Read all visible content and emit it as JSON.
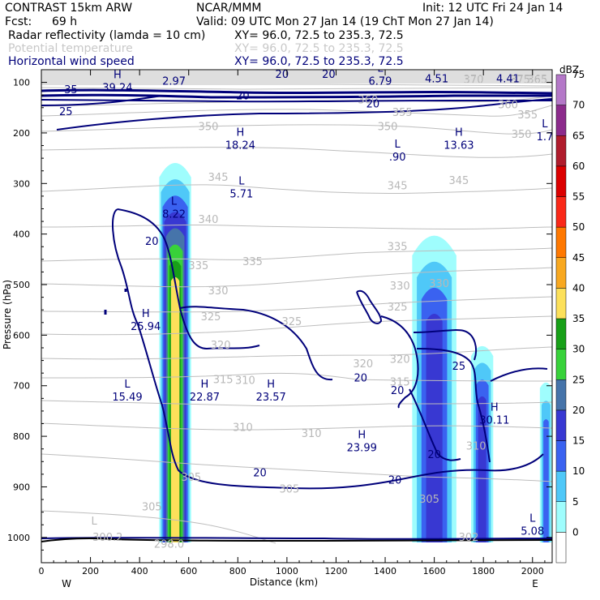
{
  "header": {
    "line1_left": "CONTRAST 15km ARW",
    "line1_mid": "NCAR/MMM",
    "line1_right": "Init: 12 UTC Fri 24 Jan 14",
    "fcst_label": "Fcst:",
    "fcst_value": "69 h",
    "valid": "Valid: 09 UTC Mon 27 Jan 14 (19 ChT Mon 27 Jan 14)",
    "fields": [
      {
        "name": "Radar reflectivity (lamda = 10 cm)",
        "xy": "XY=   96.0, 72.5 to 235.3, 72.5",
        "color": "#000000"
      },
      {
        "name": "Potential temperature",
        "xy": "XY=   96.0, 72.5 to 235.3, 72.5",
        "color": "#c8c8c8"
      },
      {
        "name": "Horizontal wind speed",
        "xy": "XY=   96.0, 72.5 to 235.3, 72.5",
        "color": "#00007a"
      }
    ]
  },
  "chart_data": {
    "type": "cross-section",
    "xlabel": "Distance (km)",
    "ylabel": "Pressure (hPa)",
    "xlim": [
      0,
      2080
    ],
    "ylim": [
      1050,
      75
    ],
    "x_ticks": [
      0,
      200,
      400,
      600,
      800,
      1000,
      1200,
      1400,
      1600,
      1800,
      2000
    ],
    "y_ticks": [
      100,
      200,
      300,
      400,
      500,
      600,
      700,
      800,
      900,
      1000
    ],
    "x_end_labels": {
      "left": "W",
      "right": "E"
    },
    "colorbar": {
      "unit": "dBZ",
      "levels": [
        0,
        5,
        10,
        15,
        20,
        25,
        30,
        35,
        40,
        45,
        50,
        55,
        60,
        65,
        70,
        75
      ],
      "colors": [
        "#ffffff",
        "#9ffdfd",
        "#4fc8f8",
        "#3a62f0",
        "#3838d2",
        "#4674aa",
        "#38d23a",
        "#18a018",
        "#fce05a",
        "#f8a820",
        "#ff7800",
        "#fa2818",
        "#dc0000",
        "#b01c2c",
        "#8c2b8c",
        "#b478c8"
      ]
    },
    "theta_contours": [
      {
        "value": "375",
        "x": 1950,
        "p": 95
      },
      {
        "value": "370",
        "x": 1760,
        "p": 95
      },
      {
        "value": "365",
        "x": 2020,
        "p": 95
      },
      {
        "value": "360",
        "x": 1330,
        "p": 135
      },
      {
        "value": "360",
        "x": 1900,
        "p": 145
      },
      {
        "value": "355",
        "x": 1470,
        "p": 160
      },
      {
        "value": "355",
        "x": 1980,
        "p": 165
      },
      {
        "value": "350",
        "x": 680,
        "p": 188
      },
      {
        "value": "350",
        "x": 1410,
        "p": 188
      },
      {
        "value": "350",
        "x": 1955,
        "p": 203
      },
      {
        "value": "345",
        "x": 720,
        "p": 288
      },
      {
        "value": "345",
        "x": 1450,
        "p": 305
      },
      {
        "value": "345",
        "x": 1700,
        "p": 295
      },
      {
        "value": "340",
        "x": 680,
        "p": 372
      },
      {
        "value": "335",
        "x": 640,
        "p": 463
      },
      {
        "value": "335",
        "x": 860,
        "p": 455
      },
      {
        "value": "335",
        "x": 1450,
        "p": 425
      },
      {
        "value": "330",
        "x": 720,
        "p": 513
      },
      {
        "value": "330",
        "x": 1460,
        "p": 503
      },
      {
        "value": "330",
        "x": 1620,
        "p": 498
      },
      {
        "value": "325",
        "x": 690,
        "p": 564
      },
      {
        "value": "325",
        "x": 1020,
        "p": 574
      },
      {
        "value": "325",
        "x": 1450,
        "p": 545
      },
      {
        "value": "320",
        "x": 730,
        "p": 620
      },
      {
        "value": "320",
        "x": 1310,
        "p": 657
      },
      {
        "value": "320",
        "x": 1460,
        "p": 648
      },
      {
        "value": "315",
        "x": 740,
        "p": 688
      },
      {
        "value": "315",
        "x": 1460,
        "p": 693
      },
      {
        "value": "310",
        "x": 830,
        "p": 690
      },
      {
        "value": "310",
        "x": 820,
        "p": 783
      },
      {
        "value": "310",
        "x": 1100,
        "p": 795
      },
      {
        "value": "310",
        "x": 1770,
        "p": 820
      },
      {
        "value": "305",
        "x": 610,
        "p": 882
      },
      {
        "value": "305",
        "x": 1010,
        "p": 905
      },
      {
        "value": "305",
        "x": 1580,
        "p": 925
      },
      {
        "value": "305",
        "x": 450,
        "p": 940
      },
      {
        "value": "300.2",
        "x": 270,
        "p": 1000
      },
      {
        "value": "298.0",
        "x": 520,
        "p": 1014
      },
      {
        "value": "302",
        "x": 1740,
        "p": 1000
      }
    ],
    "theta_extrema": [
      {
        "type": "L",
        "value": "300.2",
        "x": 215,
        "p": 975
      }
    ],
    "wind_contours": [
      {
        "value": "35",
        "x": 120,
        "p": 115
      },
      {
        "value": "25",
        "x": 100,
        "p": 158
      },
      {
        "value": "20",
        "x": 980,
        "p": 85
      },
      {
        "value": "20",
        "x": 1170,
        "p": 85
      },
      {
        "value": "20",
        "x": 820,
        "p": 127
      },
      {
        "value": "20",
        "x": 1350,
        "p": 143
      },
      {
        "value": "20",
        "x": 450,
        "p": 415
      },
      {
        "value": "20",
        "x": 1300,
        "p": 685
      },
      {
        "value": "20",
        "x": 1450,
        "p": 710
      },
      {
        "value": "20",
        "x": 890,
        "p": 873
      },
      {
        "value": "20",
        "x": 1440,
        "p": 887
      },
      {
        "value": "20",
        "x": 1600,
        "p": 837
      },
      {
        "value": "25",
        "x": 1700,
        "p": 662
      }
    ],
    "wind_extrema": [
      {
        "type": "H",
        "value": "39.24",
        "x": 310,
        "p": 108
      },
      {
        "type": "",
        "value": "2.97",
        "x": 540,
        "p": 95
      },
      {
        "type": "L",
        "value": "6.79",
        "x": 1380,
        "p": 95
      },
      {
        "type": "",
        "value": "4.51",
        "x": 1610,
        "p": 90
      },
      {
        "type": "",
        "value": "4.41",
        "x": 1900,
        "p": 90
      },
      {
        "type": "H",
        "value": "18.24",
        "x": 810,
        "p": 222
      },
      {
        "type": "L",
        "value": ".90",
        "x": 1450,
        "p": 245
      },
      {
        "type": "H",
        "value": "13.63",
        "x": 1700,
        "p": 222
      },
      {
        "type": "L",
        "value": "1.7",
        "x": 2050,
        "p": 205
      },
      {
        "type": "L",
        "value": "5.71",
        "x": 815,
        "p": 318
      },
      {
        "type": "L",
        "value": "8.22",
        "x": 540,
        "p": 358
      },
      {
        "type": "H",
        "value": "25.94",
        "x": 425,
        "p": 580
      },
      {
        "type": "L",
        "value": "15.49",
        "x": 350,
        "p": 720
      },
      {
        "type": "H",
        "value": "22.87",
        "x": 665,
        "p": 720
      },
      {
        "type": "H",
        "value": "23.57",
        "x": 935,
        "p": 720
      },
      {
        "type": "H",
        "value": "23.99",
        "x": 1305,
        "p": 820
      },
      {
        "type": "H",
        "value": "30.11",
        "x": 1845,
        "p": 765
      },
      {
        "type": "L",
        "value": "5.08",
        "x": 2000,
        "p": 985
      }
    ],
    "reflectivity_cells": [
      {
        "x0": 480,
        "x1": 610,
        "p_top": 250,
        "p_bot": 1010,
        "core_dbz": 40
      },
      {
        "x0": 1510,
        "x1": 1690,
        "p_top": 390,
        "p_bot": 1010,
        "core_dbz": 20
      },
      {
        "x0": 1750,
        "x1": 1840,
        "p_top": 615,
        "p_bot": 1010,
        "core_dbz": 20
      },
      {
        "x0": 2030,
        "x1": 2080,
        "p_top": 690,
        "p_bot": 1010,
        "core_dbz": 15
      }
    ]
  }
}
